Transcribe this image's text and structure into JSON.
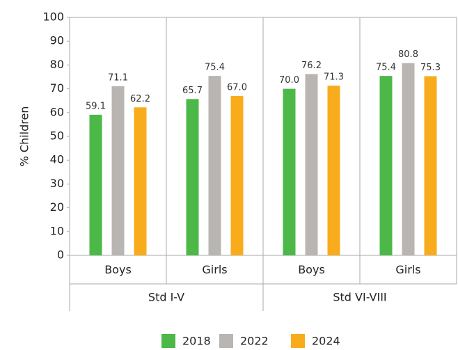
{
  "chart_data": {
    "type": "bar",
    "y_label": "% Children",
    "categories": [
      "Boys",
      "Girls",
      "Boys",
      "Girls"
    ],
    "category_groups": [
      "Std I-V",
      "Std VI-VIII"
    ],
    "series": [
      {
        "name": "2018",
        "color": "#4cb848",
        "values": [
          59.1,
          65.7,
          70.0,
          75.4
        ],
        "value_labels": [
          "59.1",
          "65.7",
          "70.0",
          "75.4"
        ]
      },
      {
        "name": "2022",
        "color": "#b8b5b3",
        "values": [
          71.1,
          75.4,
          76.2,
          80.8
        ],
        "value_labels": [
          "71.1",
          "75.4",
          "76.2",
          "80.8"
        ]
      },
      {
        "name": "2024",
        "color": "#f8ac1c",
        "values": [
          62.2,
          67.0,
          71.3,
          75.3
        ],
        "value_labels": [
          "62.2",
          "67.0",
          "71.3",
          "75.3"
        ]
      }
    ],
    "ylim": [
      0,
      100
    ],
    "yticks": [
      0,
      10,
      20,
      30,
      40,
      50,
      60,
      70,
      80,
      90,
      100
    ],
    "grid": false,
    "legend": "bottom"
  }
}
